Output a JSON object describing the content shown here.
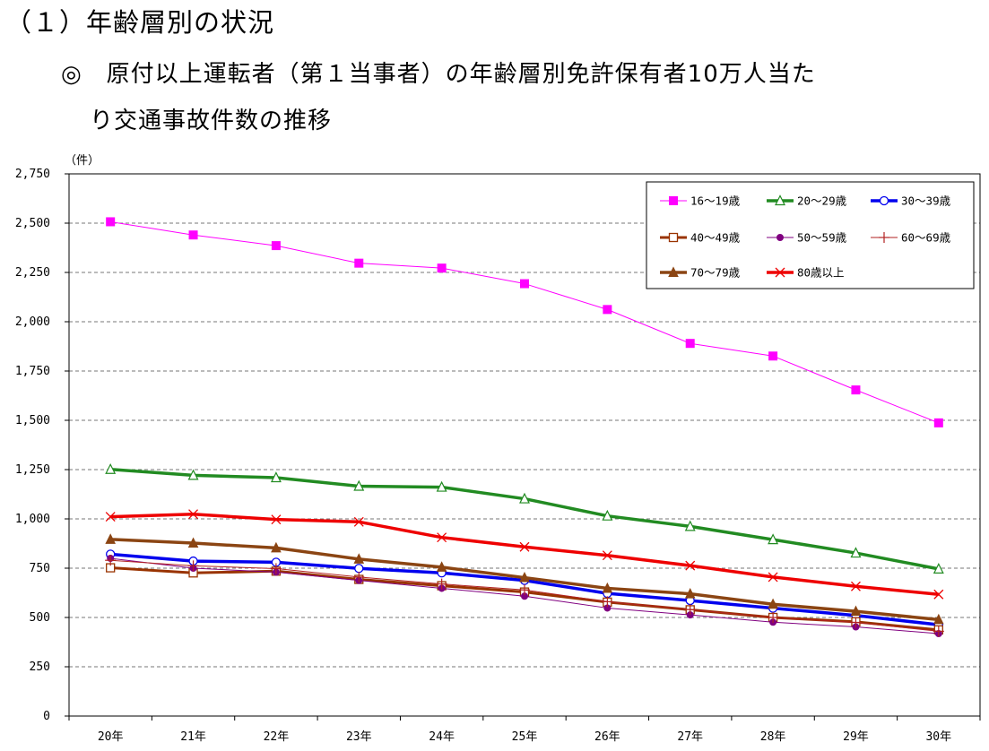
{
  "heading": {
    "section": "（１）年齢層別の状況",
    "subtitle_line1": "◎　原付以上運転者（第１当事者）の年齢層別免許保有者10万人当た",
    "subtitle_line2": "り交通事故件数の推移"
  },
  "chart_data": {
    "type": "line",
    "y_unit_label": "（件）",
    "categories": [
      "20年",
      "21年",
      "22年",
      "23年",
      "24年",
      "25年",
      "26年",
      "27年",
      "28年",
      "29年",
      "30年"
    ],
    "ylim": [
      0,
      2750
    ],
    "yticks": [
      0,
      250,
      500,
      750,
      1000,
      1250,
      1500,
      1750,
      2000,
      2250,
      2500,
      2750
    ],
    "ytick_labels": [
      "0",
      "250",
      "500",
      "750",
      "1,000",
      "1,250",
      "1,500",
      "1,750",
      "2,000",
      "2,250",
      "2,500",
      "2,750"
    ],
    "grid": "horizontal dashed",
    "legend_position": "top-right",
    "series": [
      {
        "name": "16～19歳",
        "color": "#ff00ff",
        "marker": "square",
        "width": 1,
        "values": [
          2507,
          2440,
          2386,
          2297,
          2272,
          2193,
          2062,
          1890,
          1826,
          1654,
          1487
        ]
      },
      {
        "name": "20～29歳",
        "color": "#228b22",
        "marker": "triangle-open",
        "width": 3.5,
        "values": [
          1251,
          1221,
          1209,
          1166,
          1161,
          1102,
          1015,
          962,
          895,
          827,
          746
        ]
      },
      {
        "name": "30～39歳",
        "color": "#0000ee",
        "marker": "circle-open",
        "width": 3.5,
        "values": [
          821,
          786,
          780,
          749,
          726,
          688,
          622,
          586,
          547,
          510,
          463
        ]
      },
      {
        "name": "40～49歳",
        "color": "#993300",
        "marker": "square-open",
        "width": 3,
        "values": [
          752,
          726,
          735,
          693,
          661,
          629,
          578,
          539,
          500,
          478,
          437
        ]
      },
      {
        "name": "50～59歳",
        "color": "#800080",
        "marker": "circle-filled",
        "width": 1,
        "values": [
          800,
          750,
          730,
          688,
          648,
          608,
          548,
          513,
          476,
          452,
          418
        ]
      },
      {
        "name": "60～69歳",
        "color": "#b22222",
        "marker": "plus",
        "width": 1,
        "values": [
          790,
          762,
          748,
          705,
          670,
          640,
          580,
          540,
          500,
          475,
          430
        ]
      },
      {
        "name": "70～79歳",
        "color": "#8b4513",
        "marker": "triangle-filled",
        "width": 3.5,
        "values": [
          896,
          877,
          853,
          796,
          755,
          702,
          648,
          620,
          567,
          531,
          489
        ]
      },
      {
        "name": "80歳以上",
        "color": "#ee0000",
        "marker": "x",
        "width": 3.5,
        "values": [
          1011,
          1024,
          997,
          985,
          906,
          858,
          815,
          763,
          705,
          658,
          617
        ]
      }
    ]
  }
}
